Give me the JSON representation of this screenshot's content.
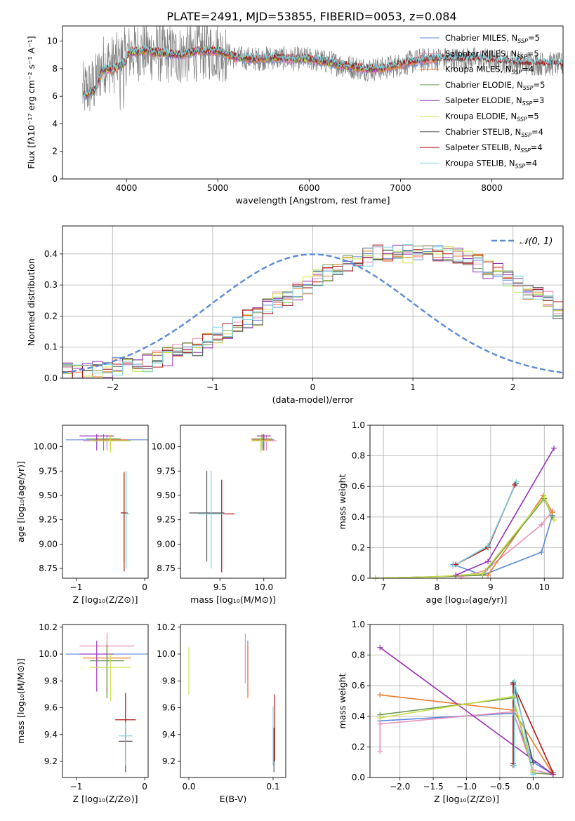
{
  "figure": {
    "title": "PLATE=2491, MJD=53855, FIBERID=0053, z=0.084"
  },
  "colors": {
    "chabrier_miles": "#5b8ad8",
    "salpeter_miles": "#e88fb9",
    "kroupa_miles": "#e87b2c",
    "chabrier_elodie": "#6a9a52",
    "salpeter_elodie": "#9a30b8",
    "kroupa_elodie": "#c9e04a",
    "chabrier_stelib": "#555555",
    "salpeter_stelib": "#b01818",
    "kroupa_stelib": "#7dd3df",
    "data": "#808080",
    "normal_curve": "#5b8ad8",
    "grid": "#b0b0b0"
  },
  "chart_data": [
    {
      "id": "spectrum",
      "type": "line",
      "xlabel": "wavelength [Angstrom, rest frame]",
      "ylabel": "Flux [fλ10⁻¹⁷ erg cm⁻² s⁻¹ A⁻¹]",
      "xlim": [
        3300,
        8780
      ],
      "ylim": [
        0,
        11.1
      ],
      "xticks": [
        4000,
        5000,
        6000,
        7000,
        8000
      ],
      "yticks": [
        0,
        2,
        4,
        6,
        8,
        10
      ],
      "grid": false,
      "legend_position": "right",
      "continuum": {
        "x": [
          3500,
          3560,
          3650,
          3750,
          3850,
          3950,
          4050,
          4200,
          4400,
          4600,
          4800,
          5000,
          5200,
          5400,
          5600,
          5800,
          6000,
          6200,
          6400,
          6600,
          6800,
          7000,
          7200,
          7400,
          7600,
          7800,
          8000,
          8200,
          8400,
          8780
        ],
        "y": [
          6.2,
          6.5,
          6.8,
          8.4,
          8.3,
          8.7,
          9.2,
          9.3,
          9.1,
          9.0,
          9.3,
          9.3,
          8.8,
          8.7,
          8.8,
          8.7,
          8.7,
          8.5,
          8.2,
          8.0,
          8.0,
          8.3,
          8.6,
          8.7,
          8.7,
          8.7,
          8.6,
          8.5,
          8.4,
          8.3
        ]
      },
      "legend": [
        {
          "label": "Chabrier MILES, N",
          "sub": "SSP",
          "suffix": "=5",
          "color_key": "chabrier_miles"
        },
        {
          "label": "Salpeter MILES, N",
          "sub": "SSP",
          "suffix": "=5",
          "color_key": "salpeter_miles"
        },
        {
          "label": "Kroupa MILES, N",
          "sub": "SSP",
          "suffix": "=4",
          "color_key": "kroupa_miles"
        },
        {
          "label": "Chabrier ELODIE, N",
          "sub": "SSP",
          "suffix": "=5",
          "color_key": "chabrier_elodie"
        },
        {
          "label": "Salpeter ELODIE, N",
          "sub": "SSP",
          "suffix": "=3",
          "color_key": "salpeter_elodie"
        },
        {
          "label": "Kroupa ELODIE, N",
          "sub": "SSP",
          "suffix": "=5",
          "color_key": "kroupa_elodie"
        },
        {
          "label": "Chabrier STELIB, N",
          "sub": "SSP",
          "suffix": "=4",
          "color_key": "chabrier_stelib"
        },
        {
          "label": "Salpeter STELIB, N",
          "sub": "SSP",
          "suffix": "=4",
          "color_key": "salpeter_stelib"
        },
        {
          "label": "Kroupa STELIB, N",
          "sub": "SSP",
          "suffix": "=4",
          "color_key": "kroupa_stelib"
        }
      ]
    },
    {
      "id": "residuals",
      "type": "line",
      "xlabel": "(data-model)/error",
      "ylabel": "Normed distribution",
      "xlim": [
        -2.5,
        2.5
      ],
      "ylim": [
        0,
        0.49
      ],
      "xticks": [
        -2,
        -1,
        0,
        1,
        2
      ],
      "yticks": [
        0.0,
        0.1,
        0.2,
        0.3,
        0.4
      ],
      "grid": true,
      "legend_position": "top-right",
      "legend_label": "𝒩(0, 1)",
      "bin_width": 0.1,
      "bin_start": -2.5,
      "base_hist": [
        0.02,
        0.02,
        0.02,
        0.03,
        0.03,
        0.04,
        0.04,
        0.04,
        0.05,
        0.06,
        0.07,
        0.08,
        0.09,
        0.1,
        0.12,
        0.14,
        0.15,
        0.17,
        0.19,
        0.2,
        0.23,
        0.25,
        0.26,
        0.28,
        0.3,
        0.32,
        0.34,
        0.36,
        0.37,
        0.38,
        0.39,
        0.4,
        0.4,
        0.4,
        0.4,
        0.41,
        0.41,
        0.4,
        0.4,
        0.39,
        0.38,
        0.37,
        0.35,
        0.34,
        0.32,
        0.3,
        0.28,
        0.27,
        0.25,
        0.22,
        0.2,
        0.19,
        0.17,
        0.15,
        0.13,
        0.12,
        0.1,
        0.09,
        0.08,
        0.07,
        0.06,
        0.05,
        0.05,
        0.04,
        0.04,
        0.04,
        0.03,
        0.03,
        0.03,
        0.03,
        0.03
      ]
    },
    {
      "id": "age_vs_Z",
      "type": "scatter",
      "xlabel": "Z [log₁₀(Z/Z⊙)]",
      "ylabel": "age  [log₁₀(age/yr)]",
      "xlim": [
        -1.2,
        0.05
      ],
      "ylim": [
        8.65,
        10.22
      ],
      "xticks": [
        -1,
        0
      ],
      "yticks": [
        8.75,
        9.0,
        9.25,
        9.5,
        9.75,
        10.0
      ],
      "grid": false,
      "points": [
        {
          "x": -0.55,
          "y": 10.07,
          "xerr": 0.6,
          "yerr": [
            0.08,
            0.04
          ],
          "color_key": "chabrier_miles"
        },
        {
          "x": -0.55,
          "y": 10.06,
          "xerr": 0.35,
          "yerr": [
            0.1,
            0.06
          ],
          "color_key": "salpeter_miles"
        },
        {
          "x": -0.5,
          "y": 10.07,
          "xerr": 0.25,
          "yerr": [
            0.1,
            0.05
          ],
          "color_key": "kroupa_miles"
        },
        {
          "x": -0.6,
          "y": 10.08,
          "xerr": 0.25,
          "yerr": [
            0.12,
            0.05
          ],
          "color_key": "chabrier_elodie"
        },
        {
          "x": -0.7,
          "y": 10.11,
          "xerr": 0.25,
          "yerr": [
            0.15,
            0.02
          ],
          "color_key": "salpeter_elodie"
        },
        {
          "x": -0.5,
          "y": 10.06,
          "xerr": 0.3,
          "yerr": [
            0.12,
            0.06
          ],
          "color_key": "kroupa_elodie"
        },
        {
          "x": -0.3,
          "y": 9.32,
          "xerr": 0.05,
          "yerr": [
            0.5,
            0.4
          ],
          "color_key": "chabrier_stelib"
        },
        {
          "x": -0.3,
          "y": 9.32,
          "xerr": 0.05,
          "yerr": [
            0.6,
            0.42
          ],
          "color_key": "salpeter_stelib"
        },
        {
          "x": -0.27,
          "y": 9.31,
          "xerr": 0.05,
          "yerr": [
            0.56,
            0.44
          ],
          "color_key": "kroupa_stelib"
        }
      ]
    },
    {
      "id": "age_vs_mass",
      "type": "scatter",
      "xlabel": "mass [log₁₀(M/M⊙)]",
      "ylabel": "",
      "xlim": [
        9.05,
        10.25
      ],
      "ylim": [
        8.65,
        10.22
      ],
      "xticks": [
        9.5,
        10.0
      ],
      "yticks": [
        8.75,
        9.0,
        9.25,
        9.5,
        9.75,
        10.0
      ],
      "grid": false,
      "points": [
        {
          "x": 10.0,
          "y": 10.07,
          "xerr": 0.12,
          "yerr": [
            0.08,
            0.04
          ],
          "color_key": "chabrier_miles"
        },
        {
          "x": 10.03,
          "y": 10.06,
          "xerr": 0.12,
          "yerr": [
            0.1,
            0.06
          ],
          "color_key": "salpeter_miles"
        },
        {
          "x": 9.98,
          "y": 10.07,
          "xerr": 0.12,
          "yerr": [
            0.1,
            0.05
          ],
          "color_key": "kroupa_miles"
        },
        {
          "x": 9.98,
          "y": 10.08,
          "xerr": 0.12,
          "yerr": [
            0.12,
            0.05
          ],
          "color_key": "chabrier_elodie"
        },
        {
          "x": 10.0,
          "y": 10.11,
          "xerr": 0.08,
          "yerr": [
            0.15,
            0.02
          ],
          "color_key": "salpeter_elodie"
        },
        {
          "x": 9.96,
          "y": 10.06,
          "xerr": 0.1,
          "yerr": [
            0.12,
            0.06
          ],
          "color_key": "kroupa_elodie"
        },
        {
          "x": 9.35,
          "y": 9.32,
          "xerr": 0.2,
          "yerr": [
            0.5,
            0.43
          ],
          "color_key": "chabrier_stelib"
        },
        {
          "x": 9.52,
          "y": 9.31,
          "xerr": 0.15,
          "yerr": [
            0.6,
            0.35
          ],
          "color_key": "salpeter_stelib"
        },
        {
          "x": 9.4,
          "y": 9.31,
          "xerr": 0.15,
          "yerr": [
            0.56,
            0.44
          ],
          "color_key": "kroupa_stelib"
        }
      ]
    },
    {
      "id": "weight_vs_age",
      "type": "line",
      "xlabel": "age  [log₁₀(age/yr)]",
      "ylabel": "mass weight",
      "xlim": [
        6.75,
        10.35
      ],
      "ylim": [
        0,
        1.0
      ],
      "xticks": [
        7,
        8,
        9,
        10
      ],
      "yticks": [
        0.0,
        0.2,
        0.4,
        0.6,
        0.8,
        1.0
      ],
      "grid": true,
      "series": [
        {
          "color_key": "chabrier_miles",
          "x": [
            8.3,
            8.85,
            9.95,
            10.15
          ],
          "y": [
            0.09,
            0.02,
            0.17,
            0.41
          ]
        },
        {
          "color_key": "salpeter_miles",
          "x": [
            8.45,
            8.9,
            9.95,
            10.15
          ],
          "y": [
            0.01,
            0.05,
            0.35,
            0.44
          ]
        },
        {
          "color_key": "kroupa_miles",
          "x": [
            6.85,
            8.0,
            8.95,
            9.98,
            10.15
          ],
          "y": [
            0.0,
            0.01,
            0.02,
            0.54,
            0.43
          ]
        },
        {
          "color_key": "chabrier_elodie",
          "x": [
            6.85,
            8.0,
            8.85,
            10.0,
            10.15
          ],
          "y": [
            0.0,
            0.01,
            0.02,
            0.52,
            0.4
          ]
        },
        {
          "color_key": "salpeter_elodie",
          "x": [
            8.35,
            8.95,
            10.18
          ],
          "y": [
            0.02,
            0.11,
            0.85
          ]
        },
        {
          "color_key": "kroupa_elodie",
          "x": [
            6.85,
            8.0,
            8.85,
            10.0,
            10.18
          ],
          "y": [
            0.0,
            0.01,
            0.03,
            0.53,
            0.38
          ]
        },
        {
          "color_key": "chabrier_stelib",
          "x": [
            8.3,
            8.95,
            9.47
          ],
          "y": [
            0.08,
            0.21,
            0.62
          ]
        },
        {
          "color_key": "salpeter_stelib",
          "x": [
            8.35,
            8.95,
            9.45
          ],
          "y": [
            0.09,
            0.2,
            0.61
          ]
        },
        {
          "color_key": "kroupa_stelib",
          "x": [
            8.3,
            8.95,
            9.48
          ],
          "y": [
            0.08,
            0.21,
            0.63
          ]
        }
      ]
    },
    {
      "id": "mass_vs_Z",
      "type": "scatter",
      "xlabel": "Z [log₁₀(Z/Z⊙)]",
      "ylabel": "mass [log₁₀(M/M⊙)]",
      "xlim": [
        -1.2,
        0.05
      ],
      "ylim": [
        9.08,
        10.22
      ],
      "xticks": [
        -1,
        0
      ],
      "yticks": [
        9.2,
        9.4,
        9.6,
        9.8,
        10.0,
        10.2
      ],
      "grid": false,
      "points": [
        {
          "x": -0.55,
          "y": 10.0,
          "xerr": 0.6,
          "yerr": [
            0.3,
            0.1
          ],
          "color_key": "chabrier_miles"
        },
        {
          "x": -0.55,
          "y": 10.06,
          "xerr": 0.4,
          "yerr": [
            0.35,
            0.1
          ],
          "color_key": "salpeter_miles"
        },
        {
          "x": -0.55,
          "y": 9.97,
          "xerr": 0.35,
          "yerr": [
            0.3,
            0.1
          ],
          "color_key": "kroupa_miles"
        },
        {
          "x": -0.55,
          "y": 9.95,
          "xerr": 0.25,
          "yerr": [
            0.28,
            0.12
          ],
          "color_key": "chabrier_elodie"
        },
        {
          "x": -0.7,
          "y": 10.0,
          "xerr": 0.25,
          "yerr": [
            0.28,
            0.1
          ],
          "color_key": "salpeter_elodie"
        },
        {
          "x": -0.5,
          "y": 9.9,
          "xerr": 0.3,
          "yerr": [
            0.25,
            0.1
          ],
          "color_key": "kroupa_elodie"
        },
        {
          "x": -0.28,
          "y": 9.35,
          "xerr": 0.1,
          "yerr": [
            0.23,
            0.1
          ],
          "color_key": "chabrier_stelib"
        },
        {
          "x": -0.28,
          "y": 9.51,
          "xerr": 0.15,
          "yerr": [
            0.3,
            0.2
          ],
          "color_key": "salpeter_stelib"
        },
        {
          "x": -0.28,
          "y": 9.39,
          "xerr": 0.1,
          "yerr": [
            0.22,
            0.1
          ],
          "color_key": "kroupa_stelib"
        }
      ]
    },
    {
      "id": "mass_vs_ebv",
      "type": "scatter",
      "xlabel": "E(B-V)",
      "ylabel": "",
      "xlim": [
        -0.01,
        0.115
      ],
      "ylim": [
        9.08,
        10.22
      ],
      "xticks": [
        0.0,
        0.1
      ],
      "yticks": [
        9.2,
        9.4,
        9.6,
        9.8,
        10.0,
        10.2
      ],
      "grid": false,
      "points": [
        {
          "x": 0.07,
          "y": 10.0,
          "xerr": 0,
          "yerr": [
            0.3,
            0.1
          ],
          "color_key": "chabrier_miles"
        },
        {
          "x": 0.067,
          "y": 10.0,
          "xerr": 0,
          "yerr": [
            0.22,
            0.15
          ],
          "color_key": "salpeter_miles"
        },
        {
          "x": 0.07,
          "y": 9.97,
          "xerr": 0,
          "yerr": [
            0.3,
            0.1
          ],
          "color_key": "kroupa_miles"
        },
        {
          "x": 0.0,
          "y": 9.9,
          "xerr": 0,
          "yerr": [
            0.2,
            0.15
          ],
          "color_key": "kroupa_elodie"
        },
        {
          "x": 0.101,
          "y": 9.35,
          "xerr": 0,
          "yerr": [
            0.23,
            0.1
          ],
          "color_key": "chabrier_stelib"
        },
        {
          "x": 0.102,
          "y": 9.5,
          "xerr": 0,
          "yerr": [
            0.3,
            0.2
          ],
          "color_key": "salpeter_stelib"
        },
        {
          "x": 0.1,
          "y": 9.39,
          "xerr": 0,
          "yerr": [
            0.22,
            0.22
          ],
          "color_key": "kroupa_stelib"
        }
      ]
    },
    {
      "id": "weight_vs_Z",
      "type": "line",
      "xlabel": "Z [log₁₀(Z/Z⊙)]",
      "ylabel": "mass weight",
      "xlim": [
        -2.45,
        0.45
      ],
      "ylim": [
        0,
        1.0
      ],
      "xticks": [
        -2.0,
        -1.5,
        -1.0,
        -0.5,
        0.0
      ],
      "yticks": [
        0.0,
        0.2,
        0.4,
        0.6,
        0.8,
        1.0
      ],
      "grid": true,
      "series": [
        {
          "color_key": "chabrier_miles",
          "x": [
            -2.3,
            -0.3,
            0.0,
            0.3
          ],
          "y": [
            0.37,
            0.42,
            0.1,
            0.02
          ]
        },
        {
          "color_key": "salpeter_miles",
          "x": [
            -2.3,
            -2.3,
            -0.3,
            0.0,
            0.3
          ],
          "y": [
            0.17,
            0.35,
            0.43,
            0.05,
            0.02
          ]
        },
        {
          "color_key": "kroupa_miles",
          "x": [
            -2.3,
            -0.3,
            0.3
          ],
          "y": [
            0.54,
            0.44,
            0.02
          ]
        },
        {
          "color_key": "chabrier_elodie",
          "x": [
            -2.3,
            -0.3,
            0.0,
            0.3
          ],
          "y": [
            0.41,
            0.52,
            0.03,
            0.02
          ]
        },
        {
          "color_key": "salpeter_elodie",
          "x": [
            -2.3,
            0.3
          ],
          "y": [
            0.85,
            0.02
          ]
        },
        {
          "color_key": "kroupa_elodie",
          "x": [
            -2.3,
            -0.3,
            0.0
          ],
          "y": [
            0.39,
            0.53,
            0.04
          ]
        },
        {
          "color_key": "chabrier_stelib",
          "x": [
            -0.3,
            -0.3,
            0.0
          ],
          "y": [
            0.08,
            0.62,
            0.1
          ]
        },
        {
          "color_key": "salpeter_stelib",
          "x": [
            -0.3,
            -0.3,
            0.3
          ],
          "y": [
            0.09,
            0.61,
            0.03
          ]
        },
        {
          "color_key": "kroupa_stelib",
          "x": [
            -0.28,
            -0.28,
            0.0
          ],
          "y": [
            0.08,
            0.63,
            0.02
          ]
        }
      ]
    }
  ]
}
